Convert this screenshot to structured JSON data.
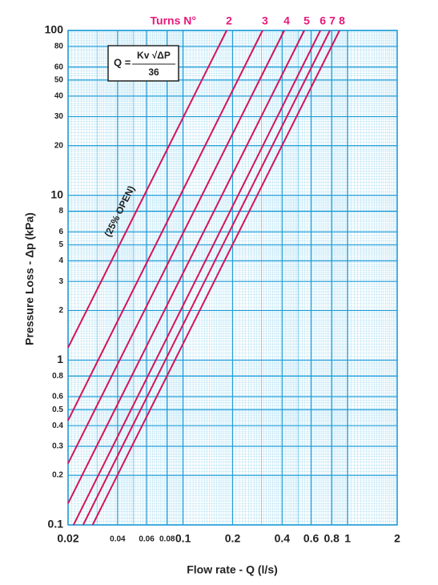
{
  "chart_data": {
    "type": "line",
    "log_x": true,
    "log_y": true,
    "grid": true,
    "x_label": "Flow rate - Q (l/s)",
    "y_label": "Pressure Loss  - Δp (kPa)",
    "series_title": "Turns N°",
    "annotation": "(25% OPEN)",
    "formula": {
      "lhs": "Q =",
      "numerator": "Kv √ΔP",
      "denominator": "36"
    },
    "color": "#d4145a",
    "xlim": [
      0.02,
      2
    ],
    "ylim": [
      0.1,
      100
    ],
    "xticks": [
      0.02,
      0.04,
      0.06,
      0.08,
      0.1,
      0.2,
      0.4,
      0.6,
      0.8,
      1,
      2
    ],
    "yticks": [
      0.1,
      0.2,
      0.3,
      0.4,
      0.5,
      0.6,
      0.8,
      1,
      2,
      3,
      4,
      5,
      6,
      8,
      10,
      20,
      30,
      40,
      50,
      60,
      80,
      100
    ],
    "series": [
      {
        "name": "2",
        "x": [
          0.02,
          0.184
        ],
        "values": [
          1.19,
          100
        ]
      },
      {
        "name": "3",
        "x": [
          0.02,
          0.304
        ],
        "values": [
          0.43,
          100
        ]
      },
      {
        "name": "4",
        "x": [
          0.02,
          0.412
        ],
        "values": [
          0.236,
          100
        ]
      },
      {
        "name": "5",
        "x": [
          0.02,
          0.545
        ],
        "values": [
          0.135,
          100
        ]
      },
      {
        "name": "6",
        "x": [
          0.0216,
          0.683
        ],
        "values": [
          0.1,
          100
        ]
      },
      {
        "name": "7",
        "x": [
          0.0247,
          0.78
        ],
        "values": [
          0.1,
          100
        ]
      },
      {
        "name": "8",
        "x": [
          0.0282,
          0.893
        ],
        "values": [
          0.1,
          100
        ]
      }
    ]
  }
}
